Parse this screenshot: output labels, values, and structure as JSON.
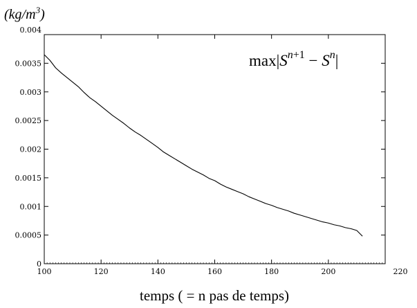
{
  "chart_data": {
    "type": "line",
    "title": "",
    "xlabel": "temps ( = n pas de temps)",
    "ylabel": "(kg/m³)",
    "ylabel_parts": {
      "open": "(",
      "unit": "kg/m",
      "exp": "3",
      "close": ")"
    },
    "xlim": [
      100,
      220
    ],
    "ylim": [
      0,
      0.004
    ],
    "x_ticks": [
      100,
      120,
      140,
      160,
      180,
      200,
      220
    ],
    "x_tick_labels": [
      "100",
      "120",
      "140",
      "160",
      "180",
      "200",
      "220"
    ],
    "y_ticks": [
      0,
      0.0005,
      0.001,
      0.0015,
      0.002,
      0.0025,
      0.003,
      0.0035,
      0.004
    ],
    "y_tick_labels": [
      "0",
      "0.0005",
      "0.001",
      "0.0015",
      "0.002",
      "0.0025",
      "0.003",
      "0.0035",
      "0.004"
    ],
    "grid": false,
    "legend_position": "top-right",
    "series": [
      {
        "name": "max|S^{n+1} − S^n|",
        "color": "#000000",
        "x": [
          100,
          102,
          104,
          106,
          108,
          110,
          112,
          114,
          116,
          118,
          120,
          122,
          124,
          126,
          128,
          130,
          132,
          134,
          136,
          138,
          140,
          142,
          144,
          146,
          148,
          150,
          152,
          154,
          156,
          158,
          160,
          162,
          164,
          166,
          168,
          170,
          172,
          174,
          176,
          178,
          180,
          182,
          184,
          186,
          188,
          190,
          192,
          194,
          196,
          198,
          200,
          202,
          204,
          206,
          208,
          210,
          212
        ],
        "y": [
          0.00365,
          0.00355,
          0.00342,
          0.00333,
          0.00325,
          0.00317,
          0.00309,
          0.00299,
          0.0029,
          0.00283,
          0.00275,
          0.00267,
          0.00259,
          0.00252,
          0.00245,
          0.00237,
          0.0023,
          0.00224,
          0.00217,
          0.0021,
          0.00203,
          0.00195,
          0.00189,
          0.00183,
          0.00177,
          0.00171,
          0.00165,
          0.0016,
          0.00155,
          0.00149,
          0.00145,
          0.00139,
          0.00134,
          0.0013,
          0.00126,
          0.00122,
          0.00117,
          0.00113,
          0.00109,
          0.00105,
          0.00102,
          0.00098,
          0.00095,
          0.00092,
          0.00088,
          0.00085,
          0.00082,
          0.00079,
          0.00076,
          0.00073,
          0.00071,
          0.00068,
          0.00066,
          0.00063,
          0.00061,
          0.00058,
          0.00048
        ]
      }
    ]
  }
}
